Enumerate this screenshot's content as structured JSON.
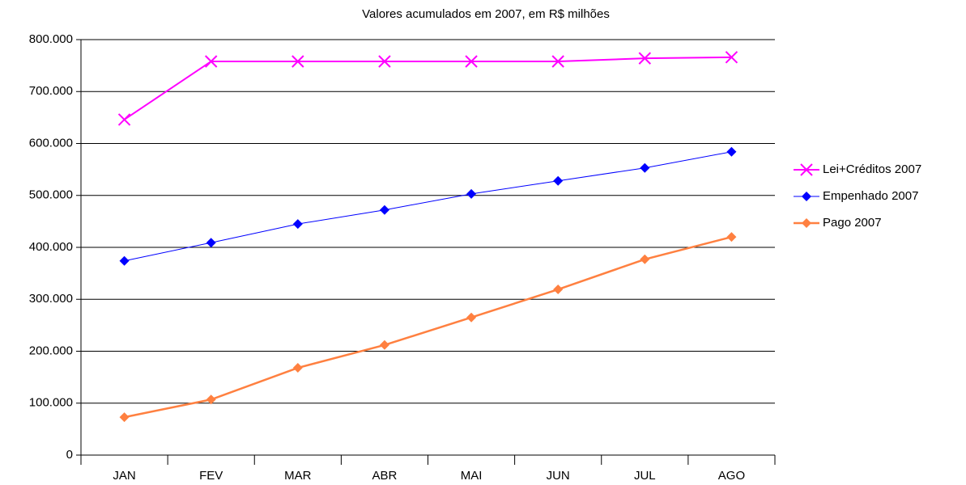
{
  "chart_data": {
    "type": "line",
    "title": "Valores acumulados em 2007, em R$ milhões",
    "categories": [
      "JAN",
      "FEV",
      "MAR",
      "ABR",
      "MAI",
      "JUN",
      "JUL",
      "AGO"
    ],
    "series": [
      {
        "name": "Lei+Créditos 2007",
        "color": "#ff00ff",
        "marker": "x",
        "values": [
          646000,
          758000,
          758000,
          758000,
          758000,
          758000,
          764000,
          766000
        ]
      },
      {
        "name": "Empenhado 2007",
        "color": "#0000ff",
        "marker": "diamond",
        "values": [
          374000,
          409000,
          445000,
          472000,
          503000,
          528000,
          553000,
          584000
        ]
      },
      {
        "name": "Pago 2007",
        "color": "#ff8040",
        "marker": "diamond",
        "values": [
          73000,
          107000,
          168000,
          212000,
          265000,
          319000,
          377000,
          420000
        ]
      }
    ],
    "ylim": [
      0,
      800000
    ],
    "yticks": [
      0,
      {
        "value": 100000,
        "label": "100.000"
      },
      {
        "value": 200000,
        "label": "200.000"
      },
      {
        "value": 300000,
        "label": "300.000"
      },
      {
        "value": 400000,
        "label": "400.000"
      },
      {
        "value": 500000,
        "label": "500.000"
      },
      {
        "value": 600000,
        "label": "600.000"
      },
      {
        "value": 700000,
        "label": "700.000"
      },
      {
        "value": 800000,
        "label": "800.000"
      }
    ],
    "grid": true,
    "legend": "right"
  }
}
